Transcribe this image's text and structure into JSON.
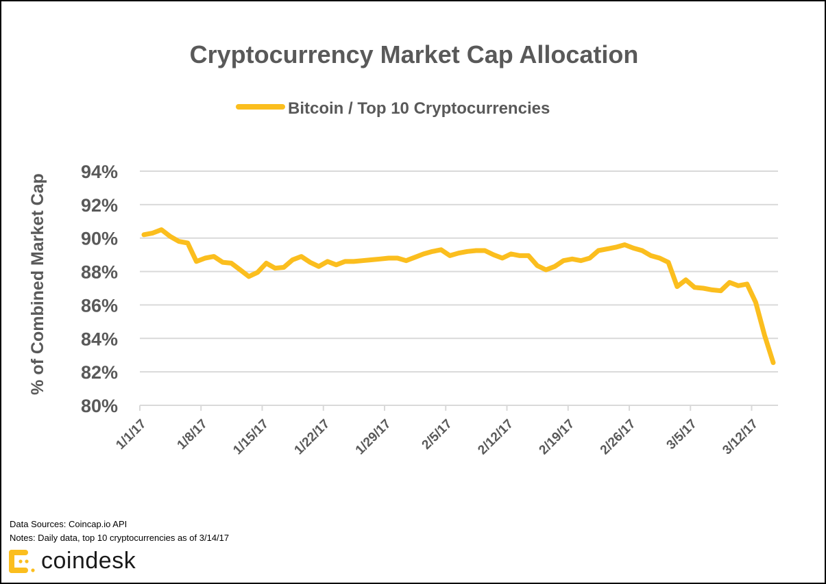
{
  "chart_data": {
    "type": "line",
    "title": "Cryptocurrency Market Cap Allocation",
    "xlabel": "",
    "ylabel": "% of Combined Market Cap",
    "ylim": [
      80,
      94
    ],
    "yticks": [
      80,
      82,
      84,
      86,
      88,
      90,
      92,
      94
    ],
    "ytick_labels": [
      "80%",
      "82%",
      "84%",
      "86%",
      "88%",
      "90%",
      "92%",
      "94%"
    ],
    "x_start": "1/1/17",
    "x_end": "3/14/17",
    "x_unit": "day",
    "xlim_days": [
      0,
      73
    ],
    "xtick_days": [
      0,
      7,
      14,
      21,
      28,
      35,
      42,
      49,
      56,
      63,
      70
    ],
    "xtick_labels": [
      "1/1/17",
      "1/8/17",
      "1/15/17",
      "1/22/17",
      "1/29/17",
      "2/5/17",
      "2/12/17",
      "2/19/17",
      "2/26/17",
      "3/5/17",
      "3/12/17"
    ],
    "grid": true,
    "legend_position": "top-center",
    "series": [
      {
        "name": "Bitcoin / Top 10 Cryptocurrencies",
        "color": "#FBBE1E",
        "values": [
          90.2,
          90.3,
          90.5,
          90.1,
          89.8,
          89.7,
          88.6,
          88.8,
          88.9,
          88.55,
          88.5,
          88.1,
          87.7,
          87.95,
          88.5,
          88.2,
          88.25,
          88.7,
          88.9,
          88.55,
          88.3,
          88.6,
          88.4,
          88.6,
          88.6,
          88.65,
          88.7,
          88.75,
          88.8,
          88.8,
          88.65,
          88.85,
          89.05,
          89.2,
          89.3,
          88.95,
          89.1,
          89.2,
          89.25,
          89.25,
          89.0,
          88.8,
          89.05,
          88.95,
          88.95,
          88.35,
          88.1,
          88.3,
          88.65,
          88.75,
          88.65,
          88.8,
          89.25,
          89.35,
          89.45,
          89.6,
          89.4,
          89.25,
          88.95,
          88.8,
          88.55,
          87.1,
          87.5,
          87.05,
          87.0,
          86.9,
          86.85,
          87.35,
          87.15,
          87.25,
          86.15,
          84.2,
          82.55
        ]
      }
    ]
  },
  "footer": {
    "sources": "Data Sources: Coincap.io API",
    "notes": "Notes: Daily data, top 10 cryptocurrencies as of 3/14/17",
    "brand": "coindesk",
    "brand_icon": "coindesk-logo-icon",
    "brand_color": "#FBBE1E"
  }
}
